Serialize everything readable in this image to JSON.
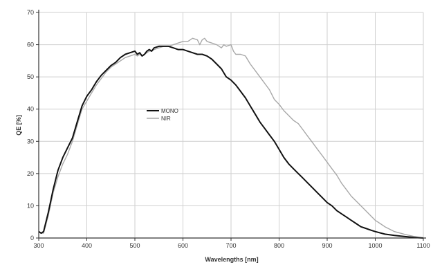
{
  "chart_data": {
    "type": "line",
    "xlabel": "Wavelengths [nm]",
    "ylabel": "QE [%]",
    "xlim": [
      300,
      1100
    ],
    "ylim": [
      0,
      70
    ],
    "x_ticks": [
      300,
      400,
      500,
      600,
      700,
      800,
      900,
      1000,
      1100
    ],
    "y_ticks": [
      0,
      10,
      20,
      30,
      40,
      50,
      60,
      70
    ],
    "grid": true,
    "legend_position": "center-left, inside plot",
    "series": [
      {
        "name": "MONO",
        "color": "#111111",
        "points": [
          [
            300,
            2
          ],
          [
            305,
            1.5
          ],
          [
            310,
            2
          ],
          [
            320,
            8
          ],
          [
            330,
            15
          ],
          [
            340,
            21
          ],
          [
            350,
            25
          ],
          [
            360,
            28
          ],
          [
            370,
            31
          ],
          [
            380,
            36
          ],
          [
            390,
            41
          ],
          [
            400,
            44
          ],
          [
            410,
            46
          ],
          [
            420,
            48.5
          ],
          [
            430,
            50.5
          ],
          [
            440,
            52
          ],
          [
            450,
            53.5
          ],
          [
            460,
            54.5
          ],
          [
            470,
            56
          ],
          [
            480,
            57
          ],
          [
            490,
            57.5
          ],
          [
            500,
            58
          ],
          [
            505,
            57
          ],
          [
            510,
            57.5
          ],
          [
            515,
            56.5
          ],
          [
            520,
            57
          ],
          [
            525,
            58
          ],
          [
            530,
            58.5
          ],
          [
            535,
            58
          ],
          [
            540,
            59
          ],
          [
            550,
            59.5
          ],
          [
            560,
            59.5
          ],
          [
            570,
            59.5
          ],
          [
            580,
            59
          ],
          [
            590,
            58.5
          ],
          [
            600,
            58.5
          ],
          [
            610,
            58
          ],
          [
            620,
            57.5
          ],
          [
            630,
            57
          ],
          [
            640,
            57
          ],
          [
            650,
            56.5
          ],
          [
            660,
            55.5
          ],
          [
            670,
            54
          ],
          [
            680,
            52.5
          ],
          [
            690,
            50
          ],
          [
            700,
            49
          ],
          [
            710,
            47.5
          ],
          [
            720,
            45.5
          ],
          [
            730,
            43.5
          ],
          [
            740,
            41
          ],
          [
            750,
            38.5
          ],
          [
            760,
            36
          ],
          [
            770,
            34
          ],
          [
            780,
            32
          ],
          [
            790,
            30
          ],
          [
            800,
            27.5
          ],
          [
            810,
            25
          ],
          [
            820,
            23
          ],
          [
            830,
            21.5
          ],
          [
            840,
            20
          ],
          [
            850,
            18.5
          ],
          [
            860,
            17
          ],
          [
            870,
            15.5
          ],
          [
            880,
            14
          ],
          [
            890,
            12.5
          ],
          [
            900,
            11
          ],
          [
            910,
            10
          ],
          [
            920,
            8.5
          ],
          [
            930,
            7.5
          ],
          [
            940,
            6.5
          ],
          [
            950,
            5.5
          ],
          [
            960,
            4.5
          ],
          [
            970,
            3.5
          ],
          [
            980,
            3
          ],
          [
            990,
            2.5
          ],
          [
            1000,
            2
          ],
          [
            1020,
            1.2
          ],
          [
            1040,
            0.8
          ],
          [
            1060,
            0.5
          ],
          [
            1080,
            0.2
          ],
          [
            1100,
            0
          ]
        ]
      },
      {
        "name": "NIR",
        "color": "#a8a8a8",
        "points": [
          [
            300,
            2
          ],
          [
            305,
            1.5
          ],
          [
            310,
            1.5
          ],
          [
            320,
            7
          ],
          [
            330,
            14
          ],
          [
            340,
            19
          ],
          [
            350,
            23
          ],
          [
            360,
            26
          ],
          [
            370,
            30
          ],
          [
            380,
            35
          ],
          [
            390,
            40
          ],
          [
            400,
            42.5
          ],
          [
            410,
            45
          ],
          [
            420,
            47.5
          ],
          [
            430,
            49.5
          ],
          [
            440,
            51.5
          ],
          [
            450,
            53
          ],
          [
            460,
            54
          ],
          [
            470,
            55
          ],
          [
            480,
            56
          ],
          [
            490,
            56.5
          ],
          [
            500,
            57
          ],
          [
            505,
            56.5
          ],
          [
            510,
            57
          ],
          [
            515,
            56.5
          ],
          [
            520,
            57
          ],
          [
            525,
            57.5
          ],
          [
            530,
            58
          ],
          [
            535,
            58
          ],
          [
            540,
            58.5
          ],
          [
            550,
            59
          ],
          [
            560,
            59.5
          ],
          [
            570,
            59.5
          ],
          [
            580,
            60
          ],
          [
            590,
            60.5
          ],
          [
            600,
            61
          ],
          [
            610,
            61
          ],
          [
            620,
            62
          ],
          [
            630,
            61.5
          ],
          [
            635,
            60
          ],
          [
            640,
            61.5
          ],
          [
            645,
            62
          ],
          [
            650,
            61
          ],
          [
            660,
            60.5
          ],
          [
            670,
            60
          ],
          [
            680,
            59
          ],
          [
            685,
            60
          ],
          [
            690,
            59.5
          ],
          [
            700,
            60
          ],
          [
            705,
            58
          ],
          [
            710,
            57
          ],
          [
            720,
            57
          ],
          [
            730,
            56.5
          ],
          [
            740,
            54
          ],
          [
            750,
            52
          ],
          [
            760,
            50
          ],
          [
            770,
            48
          ],
          [
            780,
            46
          ],
          [
            790,
            43
          ],
          [
            800,
            41.5
          ],
          [
            810,
            39.5
          ],
          [
            820,
            38
          ],
          [
            830,
            36.5
          ],
          [
            840,
            35.5
          ],
          [
            850,
            33.5
          ],
          [
            860,
            31.5
          ],
          [
            870,
            29.5
          ],
          [
            880,
            27.5
          ],
          [
            890,
            25.5
          ],
          [
            900,
            23.5
          ],
          [
            910,
            21.5
          ],
          [
            920,
            19.5
          ],
          [
            930,
            17
          ],
          [
            940,
            15
          ],
          [
            950,
            13
          ],
          [
            960,
            11.5
          ],
          [
            970,
            10
          ],
          [
            980,
            8.5
          ],
          [
            990,
            7
          ],
          [
            1000,
            5.5
          ],
          [
            1010,
            4.5
          ],
          [
            1020,
            3.5
          ],
          [
            1040,
            2
          ],
          [
            1060,
            1.2
          ],
          [
            1080,
            0.5
          ],
          [
            1100,
            0
          ]
        ]
      }
    ]
  }
}
